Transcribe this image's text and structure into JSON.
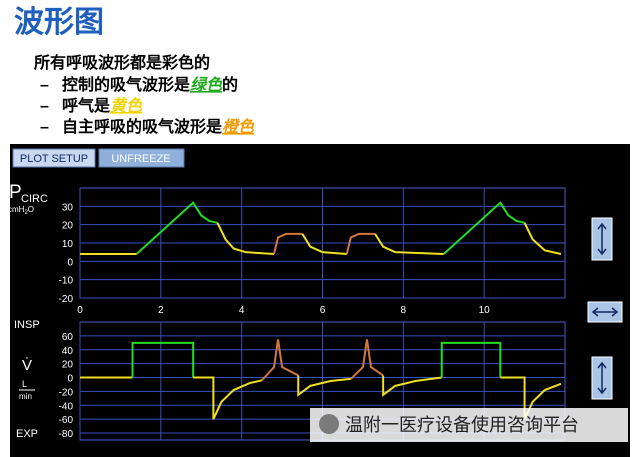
{
  "header": {
    "title": "波形图"
  },
  "intro": "所有呼吸波形都是彩色的",
  "bullets": [
    {
      "marker": "–",
      "text": "控制的吸气波形是",
      "highlight": "绿色",
      "highlight_color": "#1faa1f",
      "suffix": "的"
    },
    {
      "marker": "–",
      "text": "呼气是",
      "highlight": "黄色",
      "highlight_color": "#f2d400"
    },
    {
      "marker": "–",
      "text": "自主呼吸的吸气波形是",
      "highlight": "橙色",
      "highlight_color": "#f29a00"
    }
  ],
  "buttons": [
    "PLOT SETUP",
    "UNFREEZE"
  ],
  "watermark": "温附一医疗设备使用咨询平台",
  "chart_data": [
    {
      "type": "line",
      "axis_label": "P",
      "axis_label_sub": "CIRC",
      "unit": "cmH",
      "unit_sub": "2",
      "unit_end": "O",
      "xlim": [
        0,
        12
      ],
      "xticks": [
        0,
        2,
        4,
        6,
        8,
        10
      ],
      "ylim": [
        -20,
        40
      ],
      "yticks": [
        30,
        20,
        10,
        0,
        -10,
        -20
      ],
      "grid": true,
      "series": [
        {
          "color": "#f0e020",
          "x": [
            0,
            1.4
          ],
          "values": [
            4,
            4
          ]
        },
        {
          "color": "#22dd22",
          "x": [
            1.4,
            2.8,
            3.0,
            3.2,
            3.4
          ],
          "values": [
            4,
            32,
            25,
            22,
            21
          ]
        },
        {
          "color": "#f0e020",
          "x": [
            3.4,
            3.6,
            3.8,
            4.1,
            4.8
          ],
          "values": [
            21,
            12,
            7,
            5,
            4
          ]
        },
        {
          "color": "#d2783c",
          "x": [
            4.8,
            4.9,
            5.1,
            5.5
          ],
          "values": [
            4,
            13,
            15,
            15
          ]
        },
        {
          "color": "#f0e020",
          "x": [
            5.5,
            5.7,
            6.0,
            6.6
          ],
          "values": [
            15,
            8,
            5,
            4
          ]
        },
        {
          "color": "#d2783c",
          "x": [
            6.6,
            6.7,
            6.9,
            7.3
          ],
          "values": [
            4,
            13,
            15,
            15
          ]
        },
        {
          "color": "#f0e020",
          "x": [
            7.3,
            7.5,
            7.8,
            9.0
          ],
          "values": [
            15,
            8,
            5,
            4
          ]
        },
        {
          "color": "#22dd22",
          "x": [
            9.0,
            10.4,
            10.6,
            10.8,
            11.0
          ],
          "values": [
            4,
            32,
            25,
            22,
            21
          ]
        },
        {
          "color": "#f0e020",
          "x": [
            11.0,
            11.2,
            11.5,
            11.9
          ],
          "values": [
            21,
            12,
            6,
            4
          ]
        }
      ]
    },
    {
      "type": "line",
      "top_label": "INSP",
      "axis_label": "V̇",
      "unit_top": "L",
      "unit_bottom": "min",
      "bottom_label": "EXP",
      "xlim": [
        0,
        12
      ],
      "ylim": [
        -90,
        80
      ],
      "yticks": [
        60,
        40,
        20,
        0,
        -20,
        -40,
        -60,
        -80
      ],
      "grid": true,
      "series": [
        {
          "color": "#f0e020",
          "x": [
            0,
            1.3
          ],
          "values": [
            0,
            0
          ]
        },
        {
          "color": "#22dd22",
          "x": [
            1.3,
            1.3,
            2.8,
            2.8
          ],
          "values": [
            0,
            50,
            50,
            0
          ]
        },
        {
          "color": "#f0e020",
          "x": [
            2.8,
            3.3,
            3.3,
            3.5,
            3.8,
            4.2,
            4.5
          ],
          "values": [
            0,
            0,
            -60,
            -35,
            -18,
            -8,
            -4
          ]
        },
        {
          "color": "#d2783c",
          "x": [
            4.5,
            4.8,
            4.9,
            5.0,
            5.4
          ],
          "values": [
            -4,
            15,
            55,
            15,
            3
          ]
        },
        {
          "color": "#f0e020",
          "x": [
            5.4,
            5.4,
            5.7,
            6.2,
            6.7
          ],
          "values": [
            3,
            -25,
            -12,
            -5,
            -2
          ]
        },
        {
          "color": "#d2783c",
          "x": [
            6.7,
            7.0,
            7.1,
            7.2,
            7.5
          ],
          "values": [
            -2,
            15,
            55,
            15,
            3
          ]
        },
        {
          "color": "#f0e020",
          "x": [
            7.5,
            7.5,
            7.8,
            8.3,
            8.95
          ],
          "values": [
            3,
            -25,
            -12,
            -5,
            0
          ]
        },
        {
          "color": "#22dd22",
          "x": [
            8.95,
            8.95,
            10.4,
            10.4
          ],
          "values": [
            0,
            50,
            50,
            0
          ]
        },
        {
          "color": "#f0e020",
          "x": [
            10.4,
            11.0,
            11.0,
            11.2,
            11.5,
            11.9
          ],
          "values": [
            0,
            0,
            -60,
            -35,
            -18,
            -9
          ]
        }
      ]
    }
  ]
}
